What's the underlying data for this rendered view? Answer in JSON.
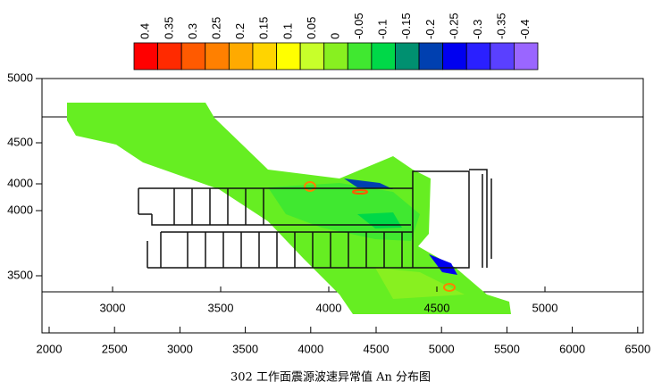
{
  "colorbar": {
    "labels": [
      "0.4",
      "0.35",
      "0.3",
      "0.25",
      "0.2",
      "0.15",
      "0.1",
      "0.05",
      "0",
      "-0.05",
      "-0.1",
      "-0.15",
      "-0.2",
      "-0.25",
      "-0.3",
      "-0.35",
      "-0.4"
    ],
    "colors": [
      "#ff0000",
      "#ff2a00",
      "#ff5a00",
      "#ff8000",
      "#ffaa00",
      "#ffd400",
      "#ffff00",
      "#c8ff2a",
      "#88f020",
      "#40e830",
      "#00d848",
      "#009070",
      "#0040b0",
      "#0000f0",
      "#2a20ff",
      "#5a40ff",
      "#9a66ff"
    ]
  },
  "outer_x_ticks": [
    "2000",
    "2500",
    "3000",
    "3500",
    "4000",
    "4500",
    "5000",
    "5500",
    "6000",
    "6500"
  ],
  "inner_x_ticks": [
    "3000",
    "3500",
    "4000",
    "4500",
    "5000"
  ],
  "y_ticks": [
    "5000",
    "4500",
    "4000",
    "4000",
    "3500"
  ],
  "caption": "302 工作面震源波速异常值 An 分布图"
}
